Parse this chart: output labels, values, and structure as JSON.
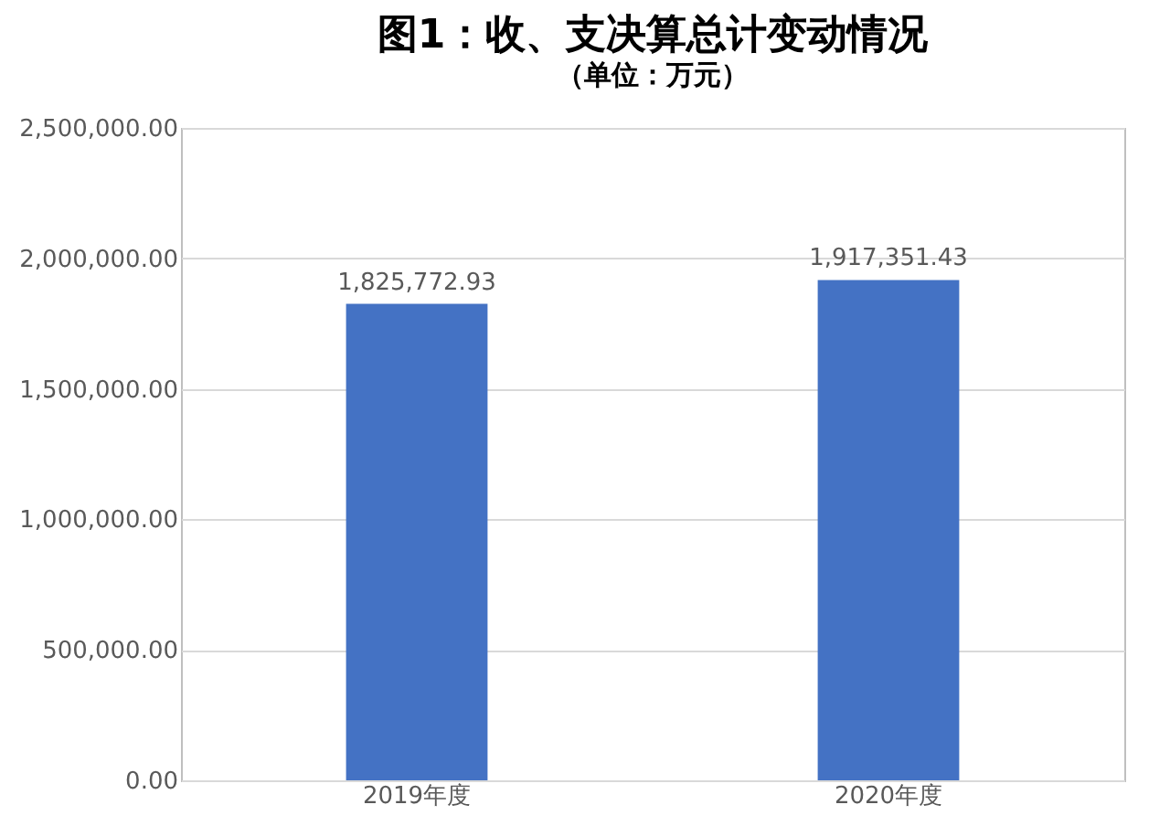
{
  "chart_data": {
    "type": "bar",
    "title": "图1：收、支决算总计变动情况",
    "subtitle": "（单位：万元）",
    "categories": [
      "2019年度",
      "2020年度"
    ],
    "values": [
      1825772.93,
      1917351.43
    ],
    "value_labels": [
      "1,825,772.93",
      "1,917,351.43"
    ],
    "color": "#4472c4",
    "ylim": [
      0,
      2500000
    ],
    "yticks": [
      {
        "value": 0,
        "label": "0.00"
      },
      {
        "value": 500000,
        "label": "500,000.00"
      },
      {
        "value": 1000000,
        "label": "1,000,000.00"
      },
      {
        "value": 1500000,
        "label": "1,500,000.00"
      },
      {
        "value": 2000000,
        "label": "2,000,000.00"
      },
      {
        "value": 2500000,
        "label": "2,500,000.00"
      }
    ],
    "grid": "y"
  }
}
